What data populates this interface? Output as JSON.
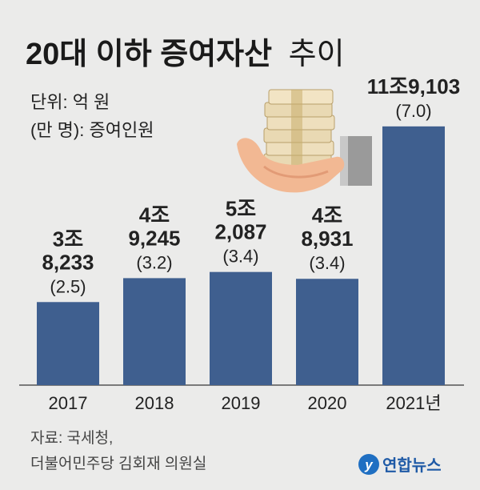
{
  "title": {
    "bold": "20대 이하 증여자산",
    "light": "추이"
  },
  "unit_lines": [
    "단위: 억 원",
    "(만 명): 증여인원"
  ],
  "chart_data": {
    "type": "bar",
    "title": "20대 이하 증여자산 추이",
    "categories": [
      "2017",
      "2018",
      "2019",
      "2020",
      "2021"
    ],
    "category_labels": [
      "2017",
      "2018",
      "2019",
      "2020",
      "2021년"
    ],
    "values": [
      38233,
      49245,
      52087,
      48931,
      119103
    ],
    "value_labels": [
      [
        "3조",
        "8,233"
      ],
      [
        "4조",
        "9,245"
      ],
      [
        "5조",
        "2,087"
      ],
      [
        "4조",
        "8,931"
      ],
      [
        "11조9,103"
      ]
    ],
    "secondary_values": [
      2.5,
      3.2,
      3.4,
      3.4,
      7.0
    ],
    "secondary_labels": [
      "(2.5)",
      "(3.2)",
      "(3.4)",
      "(3.4)",
      "(7.0)"
    ],
    "ylim": [
      0,
      122000
    ],
    "xlabel": "",
    "ylabel": "",
    "colors": {
      "bar": "#3f5f8f",
      "background": "#ebebea",
      "text": "#222222",
      "axis": "#555555"
    }
  },
  "source_lines": [
    "자료: 국세청,",
    "더불어민주당 김회재 의원실"
  ],
  "logo": {
    "text": "연합뉴스",
    "icon": "yonhap-logo-icon"
  },
  "illustration": {
    "icon": "hand-holding-money-icon"
  }
}
